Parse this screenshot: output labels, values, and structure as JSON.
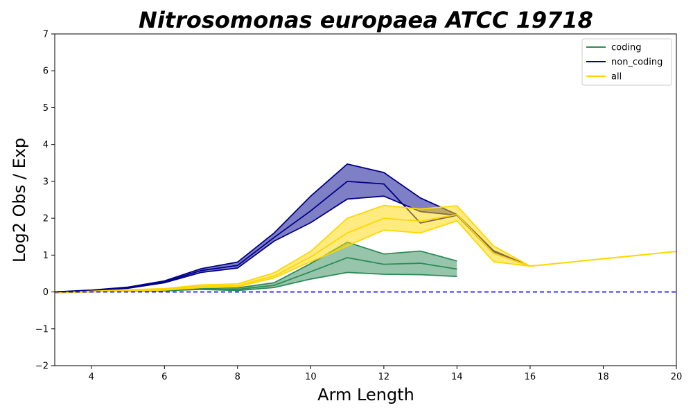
{
  "chart_data": {
    "type": "line",
    "title": "Nitrosomonas europaea ATCC 19718",
    "xlabel": "Arm Length",
    "ylabel": "Log2 Obs / Exp",
    "xlim": [
      3,
      20
    ],
    "ylim": [
      -2,
      7
    ],
    "x_ticks": [
      4,
      6,
      8,
      10,
      12,
      14,
      16,
      18,
      20
    ],
    "y_ticks": [
      -2,
      -1,
      0,
      1,
      2,
      3,
      4,
      5,
      6,
      7
    ],
    "x_tick_labels": [
      "4",
      "6",
      "8",
      "10",
      "12",
      "14",
      "16",
      "18",
      "20"
    ],
    "y_tick_labels": [
      "−2",
      "−1",
      "0",
      "1",
      "2",
      "3",
      "4",
      "5",
      "6",
      "7"
    ],
    "grid": false,
    "legend_position": "top-right",
    "reference_line": {
      "y": 0,
      "style": "dashed",
      "color": "#0000ff"
    },
    "series": [
      {
        "name": "coding",
        "color": "#2e8b57",
        "x": [
          3,
          4,
          5,
          6,
          7,
          8,
          9,
          10,
          11,
          12,
          13,
          14
        ],
        "mean": [
          0.0,
          0.02,
          0.03,
          0.05,
          0.1,
          0.07,
          0.18,
          0.55,
          0.93,
          0.75,
          0.78,
          0.62
        ],
        "lower": [
          0.0,
          0.01,
          0.02,
          0.03,
          0.07,
          0.04,
          0.12,
          0.35,
          0.53,
          0.48,
          0.47,
          0.42
        ],
        "upper": [
          0.0,
          0.03,
          0.05,
          0.07,
          0.14,
          0.11,
          0.25,
          0.77,
          1.35,
          1.03,
          1.11,
          0.84
        ]
      },
      {
        "name": "non_coding",
        "color": "#00008b",
        "x": [
          3,
          4,
          5,
          6,
          7,
          8,
          9,
          10,
          11,
          12,
          13,
          14,
          15,
          16
        ],
        "mean": [
          0.0,
          0.04,
          0.12,
          0.27,
          0.58,
          0.72,
          1.48,
          2.2,
          3.0,
          2.93,
          1.87,
          2.08,
          1.1,
          0.7
        ],
        "lower": [
          0.0,
          0.03,
          0.1,
          0.25,
          0.53,
          0.65,
          1.38,
          1.88,
          2.52,
          2.6,
          2.18,
          2.08,
          1.05,
          0.7
        ],
        "upper": [
          0.0,
          0.05,
          0.13,
          0.3,
          0.63,
          0.81,
          1.6,
          2.6,
          3.47,
          3.24,
          2.55,
          2.1,
          1.12,
          0.7
        ]
      },
      {
        "name": "all",
        "color": "#ffd700",
        "x": [
          3,
          4,
          5,
          6,
          7,
          8,
          9,
          10,
          11,
          12,
          13,
          14,
          15,
          16,
          17,
          18,
          19,
          20
        ],
        "mean": [
          -0.03,
          0.01,
          0.04,
          0.07,
          0.15,
          0.17,
          0.43,
          0.95,
          1.6,
          2.0,
          1.92,
          2.1,
          1.05,
          0.7,
          0.8,
          0.9,
          1.0,
          1.1
        ],
        "lower": [
          -0.03,
          0.0,
          0.03,
          0.05,
          0.12,
          0.14,
          0.38,
          0.82,
          1.25,
          1.68,
          1.6,
          1.93,
          0.82,
          0.7,
          0.8,
          0.9,
          1.0,
          1.1
        ],
        "upper": [
          -0.03,
          0.02,
          0.06,
          0.09,
          0.19,
          0.22,
          0.52,
          1.1,
          2.0,
          2.35,
          2.25,
          2.34,
          1.25,
          0.7,
          0.8,
          0.9,
          1.0,
          1.1
        ]
      }
    ]
  }
}
